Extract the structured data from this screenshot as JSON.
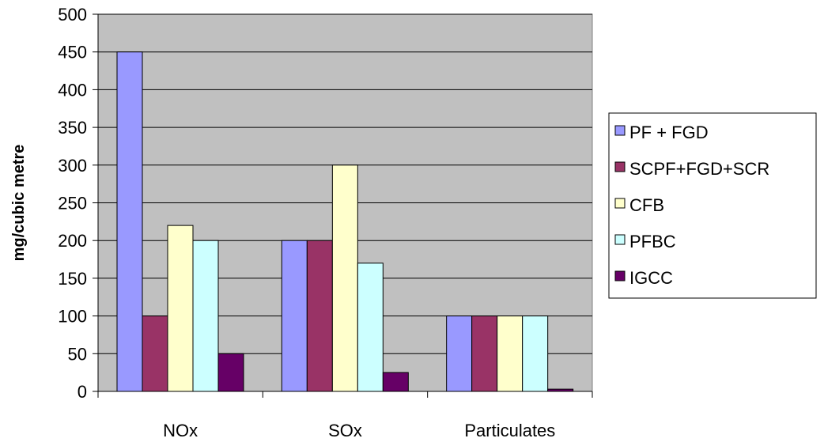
{
  "chart_data": {
    "type": "bar",
    "title": "",
    "xlabel": "",
    "ylabel": "mg/cubic metre",
    "categories": [
      "NOx",
      "SOx",
      "Particulates"
    ],
    "ylim": [
      0,
      500
    ],
    "yticks": [
      0,
      50,
      100,
      150,
      200,
      250,
      300,
      350,
      400,
      450,
      500
    ],
    "grid": true,
    "legend_position": "right",
    "plot_background": "#c0c0c0",
    "series": [
      {
        "name": "PF + FGD",
        "color": "#9999ff",
        "values": [
          450,
          200,
          100
        ]
      },
      {
        "name": "SCPF+FGD+SCR",
        "color": "#993366",
        "values": [
          100,
          200,
          100
        ]
      },
      {
        "name": "CFB",
        "color": "#ffffcc",
        "values": [
          220,
          300,
          100
        ]
      },
      {
        "name": "PFBC",
        "color": "#ccffff",
        "values": [
          200,
          170,
          100
        ]
      },
      {
        "name": "IGCC",
        "color": "#660066",
        "values": [
          50,
          25,
          3
        ]
      }
    ]
  }
}
